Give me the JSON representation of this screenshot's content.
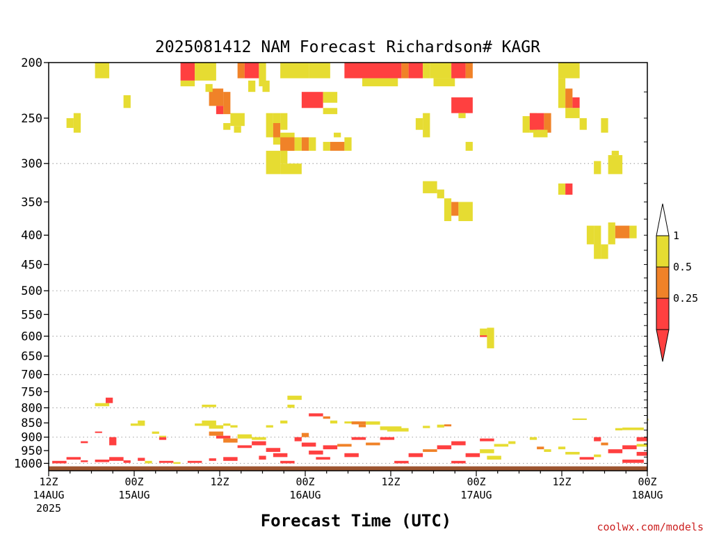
{
  "chart_data": {
    "type": "heatmap",
    "title": "2025081412 NAM Forecast Richardson# KAGR",
    "xlabel": "Forecast Time (UTC)",
    "ylabel": "",
    "credit": "coolwx.com/models",
    "y_axis": {
      "scale": "log",
      "direction": "pressure-decreasing-upward",
      "ylim": [
        1030,
        200
      ],
      "tick_values": [
        200,
        250,
        300,
        350,
        400,
        450,
        500,
        550,
        600,
        650,
        700,
        750,
        800,
        850,
        900,
        950,
        1000
      ],
      "tick_labels": [
        "200",
        "250",
        "300",
        "350",
        "400",
        "450",
        "500",
        "550",
        "600",
        "650",
        "700",
        "750",
        "800",
        "850",
        "900",
        "950",
        "1000"
      ],
      "gridlines_at": [
        300,
        500,
        600,
        700,
        800,
        900,
        1000
      ]
    },
    "x_axis": {
      "xlim": [
        0,
        84
      ],
      "units_note": "hours after 12Z 14AUG 2025",
      "ticks": [
        {
          "h": 0,
          "l1": "12Z",
          "l2": "14AUG",
          "l3": "2025"
        },
        {
          "h": 12,
          "l1": "00Z",
          "l2": "15AUG",
          "l3": ""
        },
        {
          "h": 24,
          "l1": "12Z",
          "l2": "",
          "l3": ""
        },
        {
          "h": 36,
          "l1": "00Z",
          "l2": "16AUG",
          "l3": ""
        },
        {
          "h": 48,
          "l1": "12Z",
          "l2": "",
          "l3": ""
        },
        {
          "h": 60,
          "l1": "00Z",
          "l2": "17AUG",
          "l3": ""
        },
        {
          "h": 72,
          "l1": "12Z",
          "l2": "",
          "l3": ""
        },
        {
          "h": 84,
          "l1": "00Z",
          "l2": "18AUG",
          "l3": ""
        }
      ]
    },
    "colorbar": {
      "levels": [
        "0.25",
        "0.5",
        "1"
      ],
      "classes": [
        {
          "name": "lt0.25",
          "color": "#ff4040"
        },
        {
          "name": "0.25-0.5",
          "color": "#f08228"
        },
        {
          "name": "0.5-1",
          "color": "#e6dc32"
        }
      ],
      "over_color": "#ffffff",
      "under_color": "#ff4040"
    },
    "colors": {
      "r": "#ff4040",
      "o": "#f08228",
      "y": "#e6dc32",
      "ground": "#9c5530",
      "grid": "#aaaaaa"
    },
    "cells": [
      [
        "y",
        6.5,
        8.5,
        200,
        213
      ],
      [
        "r",
        18.5,
        20.5,
        200,
        215
      ],
      [
        "y",
        20.5,
        23.5,
        200,
        215
      ],
      [
        "y",
        18.5,
        20.5,
        215,
        220
      ],
      [
        "o",
        26.5,
        27.5,
        200,
        213
      ],
      [
        "r",
        27.5,
        29.5,
        200,
        213
      ],
      [
        "y",
        29.5,
        30.5,
        200,
        220
      ],
      [
        "y",
        32.5,
        36.5,
        200,
        213
      ],
      [
        "y",
        36.5,
        39.5,
        200,
        213
      ],
      [
        "r",
        41.5,
        49.5,
        200,
        213
      ],
      [
        "o",
        49.5,
        50.5,
        200,
        213
      ],
      [
        "r",
        50.5,
        52.5,
        200,
        213
      ],
      [
        "y",
        52.5,
        53.5,
        200,
        213
      ],
      [
        "y",
        53.5,
        55.5,
        200,
        213
      ],
      [
        "y",
        44,
        49,
        213,
        220
      ],
      [
        "y",
        54,
        57,
        213,
        220
      ],
      [
        "o",
        22.5,
        24.5,
        222,
        238
      ],
      [
        "r",
        23.5,
        24.5,
        238,
        246
      ],
      [
        "o",
        24.5,
        25.5,
        225,
        246
      ],
      [
        "y",
        22,
        23,
        218,
        225
      ],
      [
        "y",
        28,
        29,
        215,
        225
      ],
      [
        "y",
        30,
        31,
        215,
        225
      ],
      [
        "y",
        10.5,
        11.5,
        228,
        240
      ],
      [
        "r",
        35.5,
        38.5,
        225,
        240
      ],
      [
        "y",
        38.5,
        40.5,
        225,
        235
      ],
      [
        "y",
        38.5,
        40.5,
        240,
        246
      ],
      [
        "y",
        54.5,
        56.5,
        200,
        213
      ],
      [
        "r",
        56.5,
        58.5,
        200,
        213
      ],
      [
        "o",
        58.5,
        59.5,
        200,
        213
      ],
      [
        "r",
        56.5,
        59.5,
        230,
        245
      ],
      [
        "y",
        57.5,
        58.5,
        245,
        250
      ],
      [
        "y",
        71.5,
        74.5,
        200,
        213
      ],
      [
        "y",
        71.5,
        72.5,
        213,
        240
      ],
      [
        "o",
        72.5,
        73.5,
        222,
        240
      ],
      [
        "r",
        73.5,
        74.5,
        230,
        240
      ],
      [
        "y",
        72.5,
        74.5,
        240,
        250
      ],
      [
        "y",
        2.5,
        3.5,
        250,
        260
      ],
      [
        "y",
        3.5,
        4.5,
        245,
        265
      ],
      [
        "y",
        25.5,
        27.5,
        245,
        258
      ],
      [
        "y",
        24.5,
        25.5,
        255,
        262
      ],
      [
        "y",
        26,
        27,
        258,
        265
      ],
      [
        "y",
        30.5,
        31.5,
        245,
        270
      ],
      [
        "y",
        31.5,
        32.5,
        245,
        278
      ],
      [
        "o",
        31.5,
        32.5,
        255,
        270
      ],
      [
        "y",
        32.5,
        33.5,
        245,
        262
      ],
      [
        "y",
        51.5,
        52.5,
        250,
        262
      ],
      [
        "y",
        52.5,
        53.5,
        245,
        270
      ],
      [
        "y",
        66.5,
        67.5,
        248,
        265
      ],
      [
        "y",
        67.5,
        68.5,
        245,
        265
      ],
      [
        "r",
        67.5,
        69.5,
        245,
        262
      ],
      [
        "o",
        69.5,
        70.5,
        245,
        265
      ],
      [
        "y",
        68,
        70,
        262,
        270
      ],
      [
        "y",
        74.5,
        75.5,
        250,
        262
      ],
      [
        "y",
        77.5,
        78.5,
        250,
        265
      ],
      [
        "y",
        32.5,
        34.5,
        265,
        285
      ],
      [
        "o",
        32.5,
        34.5,
        270,
        285
      ],
      [
        "y",
        34.5,
        35.5,
        270,
        285
      ],
      [
        "o",
        35.5,
        36.5,
        270,
        285
      ],
      [
        "y",
        36.5,
        37.5,
        270,
        285
      ],
      [
        "y",
        38.5,
        39.5,
        275,
        285
      ],
      [
        "o",
        39.5,
        41.5,
        275,
        285
      ],
      [
        "y",
        41.5,
        42.5,
        270,
        285
      ],
      [
        "y",
        40,
        41,
        265,
        270
      ],
      [
        "y",
        30.5,
        32.5,
        285,
        313
      ],
      [
        "y",
        32.5,
        35.5,
        300,
        313
      ],
      [
        "y",
        32.5,
        33.5,
        285,
        300
      ],
      [
        "y",
        58.5,
        59.5,
        275,
        285
      ],
      [
        "y",
        76.5,
        77.5,
        297,
        313
      ],
      [
        "y",
        78.5,
        80.5,
        290,
        313
      ],
      [
        "y",
        79,
        80,
        285,
        290
      ],
      [
        "y",
        52.5,
        54.5,
        322,
        338
      ],
      [
        "y",
        54.5,
        55.5,
        333,
        345
      ],
      [
        "y",
        55.5,
        56.5,
        345,
        378
      ],
      [
        "o",
        56.5,
        57.5,
        350,
        370
      ],
      [
        "y",
        57.5,
        59.5,
        350,
        378
      ],
      [
        "y",
        71.5,
        72.5,
        325,
        340
      ],
      [
        "r",
        72.5,
        73.5,
        325,
        340
      ],
      [
        "y",
        75.5,
        76.5,
        385,
        415
      ],
      [
        "y",
        76.5,
        77.5,
        385,
        440
      ],
      [
        "y",
        77.5,
        78.5,
        415,
        440
      ],
      [
        "y",
        78.5,
        79.5,
        380,
        415
      ],
      [
        "o",
        79.5,
        81.5,
        385,
        405
      ],
      [
        "y",
        81.5,
        82.5,
        385,
        405
      ],
      [
        "y",
        6.5,
        8.5,
        785,
        795
      ],
      [
        "r",
        8,
        9,
        768,
        785
      ],
      [
        "y",
        21.5,
        23.5,
        790,
        798
      ],
      [
        "y",
        12.5,
        13.5,
        842,
        860
      ],
      [
        "y",
        11.5,
        12.5,
        852,
        860
      ],
      [
        "y",
        33.5,
        35.5,
        762,
        775
      ],
      [
        "y",
        33.5,
        34.5,
        790,
        800
      ],
      [
        "y",
        20.5,
        22.5,
        852,
        860
      ],
      [
        "y",
        21.5,
        23.5,
        842,
        860
      ],
      [
        "y",
        22.5,
        24.5,
        858,
        870
      ],
      [
        "y",
        24.5,
        25.5,
        852,
        860
      ],
      [
        "y",
        25.5,
        26.5,
        858,
        866
      ],
      [
        "y",
        32.5,
        33.5,
        842,
        852
      ],
      [
        "y",
        30.5,
        31.5,
        858,
        866
      ],
      [
        "r",
        36.5,
        38.5,
        818,
        828
      ],
      [
        "o",
        38.5,
        39.5,
        828,
        836
      ],
      [
        "y",
        39.5,
        40.5,
        842,
        852
      ],
      [
        "y",
        41.5,
        43.5,
        845,
        852
      ],
      [
        "o",
        42.5,
        44.5,
        845,
        855
      ],
      [
        "o",
        43.5,
        44.5,
        855,
        865
      ],
      [
        "y",
        44.5,
        46.5,
        845,
        856
      ],
      [
        "y",
        46.5,
        49.5,
        862,
        875
      ],
      [
        "y",
        47.5,
        50.5,
        868,
        880
      ],
      [
        "y",
        54.5,
        55.5,
        856,
        866
      ],
      [
        "o",
        55.5,
        56.5,
        855,
        862
      ],
      [
        "y",
        52.5,
        53.5,
        860,
        868
      ],
      [
        "y",
        73.5,
        75.5,
        835,
        840
      ],
      [
        "y",
        79.5,
        80.5,
        868,
        876
      ],
      [
        "y",
        80.5,
        83.5,
        866,
        875
      ],
      [
        "y",
        84,
        84,
        836,
        842
      ],
      [
        "y",
        60.5,
        61.5,
        582,
        600
      ],
      [
        "y",
        61.5,
        62.5,
        580,
        630
      ],
      [
        "r",
        60.5,
        61.5,
        598,
        602
      ],
      [
        "r",
        0.5,
        2.5,
        990,
        1000
      ],
      [
        "r",
        2.5,
        4.5,
        975,
        985
      ],
      [
        "r",
        4.5,
        5.5,
        988,
        995
      ],
      [
        "r",
        6.5,
        8.5,
        985,
        995
      ],
      [
        "r",
        8.5,
        10.5,
        975,
        990
      ],
      [
        "r",
        8.5,
        9.5,
        900,
        930
      ],
      [
        "r",
        10.5,
        11.5,
        988,
        998
      ],
      [
        "r",
        12.5,
        13.5,
        978,
        990
      ],
      [
        "r",
        15.5,
        17.5,
        990,
        998
      ],
      [
        "y",
        13.5,
        14.5,
        990,
        1000
      ],
      [
        "y",
        17.5,
        18.5,
        995,
        1002
      ],
      [
        "r",
        4.5,
        5.5,
        915,
        922
      ],
      [
        "r",
        6.5,
        7.5,
        880,
        885
      ],
      [
        "y",
        14.5,
        15.5,
        880,
        888
      ],
      [
        "r",
        15.5,
        16.5,
        900,
        910
      ],
      [
        "y",
        15.5,
        16.5,
        895,
        900
      ],
      [
        "r",
        19.5,
        21.5,
        990,
        998
      ],
      [
        "r",
        22.5,
        23.5,
        980,
        990
      ],
      [
        "r",
        24.5,
        26.5,
        975,
        990
      ],
      [
        "o",
        22.5,
        24.5,
        880,
        895
      ],
      [
        "r",
        23.5,
        25.5,
        895,
        905
      ],
      [
        "o",
        24.5,
        26.5,
        905,
        920
      ],
      [
        "y",
        26.5,
        28.5,
        890,
        905
      ],
      [
        "r",
        26.5,
        28.5,
        930,
        940
      ],
      [
        "r",
        28.5,
        30.5,
        915,
        930
      ],
      [
        "y",
        28.5,
        30.5,
        900,
        910
      ],
      [
        "r",
        30.5,
        32.5,
        940,
        955
      ],
      [
        "r",
        29.5,
        30.5,
        970,
        985
      ],
      [
        "r",
        31.5,
        33.5,
        960,
        975
      ],
      [
        "r",
        32.5,
        34.5,
        990,
        1000
      ],
      [
        "r",
        34.5,
        35.5,
        900,
        915
      ],
      [
        "o",
        35.5,
        36.5,
        885,
        900
      ],
      [
        "r",
        35.5,
        37.5,
        920,
        935
      ],
      [
        "r",
        36.5,
        38.5,
        950,
        965
      ],
      [
        "r",
        37.5,
        39.5,
        975,
        985
      ],
      [
        "r",
        38.5,
        40.5,
        930,
        945
      ],
      [
        "o",
        40.5,
        42.5,
        925,
        935
      ],
      [
        "r",
        41.5,
        43.5,
        960,
        975
      ],
      [
        "r",
        42.5,
        44.5,
        900,
        910
      ],
      [
        "o",
        44.5,
        46.5,
        920,
        930
      ],
      [
        "r",
        46.5,
        48.5,
        900,
        910
      ],
      [
        "r",
        48.5,
        50.5,
        990,
        1000
      ],
      [
        "r",
        50.5,
        52.5,
        960,
        975
      ],
      [
        "o",
        52.5,
        54.5,
        945,
        955
      ],
      [
        "r",
        54.5,
        56.5,
        930,
        945
      ],
      [
        "r",
        56.5,
        58.5,
        915,
        930
      ],
      [
        "r",
        58.5,
        60.5,
        960,
        975
      ],
      [
        "r",
        56.5,
        58.5,
        990,
        1000
      ],
      [
        "y",
        60.5,
        62.5,
        945,
        960
      ],
      [
        "y",
        61.5,
        63.5,
        970,
        985
      ],
      [
        "y",
        62.5,
        64.5,
        925,
        935
      ],
      [
        "r",
        60.5,
        62.5,
        905,
        915
      ],
      [
        "y",
        64.5,
        65.5,
        915,
        925
      ],
      [
        "y",
        67.5,
        68.5,
        900,
        910
      ],
      [
        "o",
        68.5,
        69.5,
        935,
        945
      ],
      [
        "y",
        69.5,
        70.5,
        945,
        955
      ],
      [
        "y",
        71.5,
        72.5,
        935,
        945
      ],
      [
        "y",
        72.5,
        74.5,
        955,
        965
      ],
      [
        "r",
        74.5,
        76.5,
        975,
        985
      ],
      [
        "r",
        76.5,
        77.5,
        900,
        915
      ],
      [
        "o",
        77.5,
        78.5,
        920,
        930
      ],
      [
        "r",
        78.5,
        80.5,
        945,
        960
      ],
      [
        "r",
        80.5,
        82.5,
        930,
        945
      ],
      [
        "r",
        82.5,
        84,
        955,
        970
      ],
      [
        "r",
        82.5,
        84,
        900,
        915
      ],
      [
        "y",
        82.5,
        84,
        925,
        935
      ],
      [
        "r",
        80.5,
        83.5,
        985,
        998
      ],
      [
        "y",
        76.5,
        77.5,
        965,
        975
      ]
    ]
  }
}
